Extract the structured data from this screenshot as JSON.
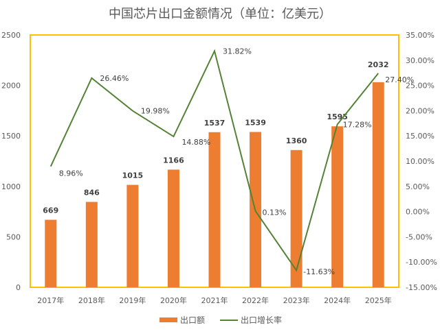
{
  "chart_data": {
    "type": "bar+line",
    "title": "中国芯片出口金额情况（单位：亿美元）",
    "categories": [
      "2017年",
      "2018年",
      "2019年",
      "2020年",
      "2021年",
      "2022年",
      "2023年",
      "2024年",
      "2025年"
    ],
    "series": [
      {
        "name": "出口额",
        "type": "bar",
        "axis": "left",
        "values": [
          669,
          846,
          1015,
          1166,
          1537,
          1539,
          1360,
          1595,
          2032
        ],
        "labels": [
          "669",
          "846",
          "1015",
          "1166",
          "1537",
          "1539",
          "1360",
          "1595",
          "2032"
        ]
      },
      {
        "name": "出口增长率",
        "type": "line",
        "axis": "right",
        "values": [
          8.96,
          26.46,
          19.98,
          14.88,
          31.82,
          0.13,
          -11.63,
          17.28,
          27.4
        ],
        "labels": [
          "8.96%",
          "26.46%",
          "19.98%",
          "14.88%",
          "31.82%",
          "0.13%",
          "-11.63%",
          "17.28%",
          "27.40%"
        ]
      }
    ],
    "y_left": {
      "range": [
        0,
        2500
      ],
      "ticks": [
        "0",
        "500",
        "1000",
        "1500",
        "2000",
        "2500"
      ]
    },
    "y_right": {
      "range": [
        -15,
        35
      ],
      "ticks": [
        "-15.00%",
        "-10.00%",
        "-5.00%",
        "0.00%",
        "5.00%",
        "10.00%",
        "15.00%",
        "20.00%",
        "25.00%",
        "30.00%",
        "35.00%"
      ]
    },
    "grid": false,
    "legend": "bottom",
    "colors": {
      "bar": "#ED7D31",
      "line": "#548235",
      "plot_border": "#FFC000"
    }
  }
}
